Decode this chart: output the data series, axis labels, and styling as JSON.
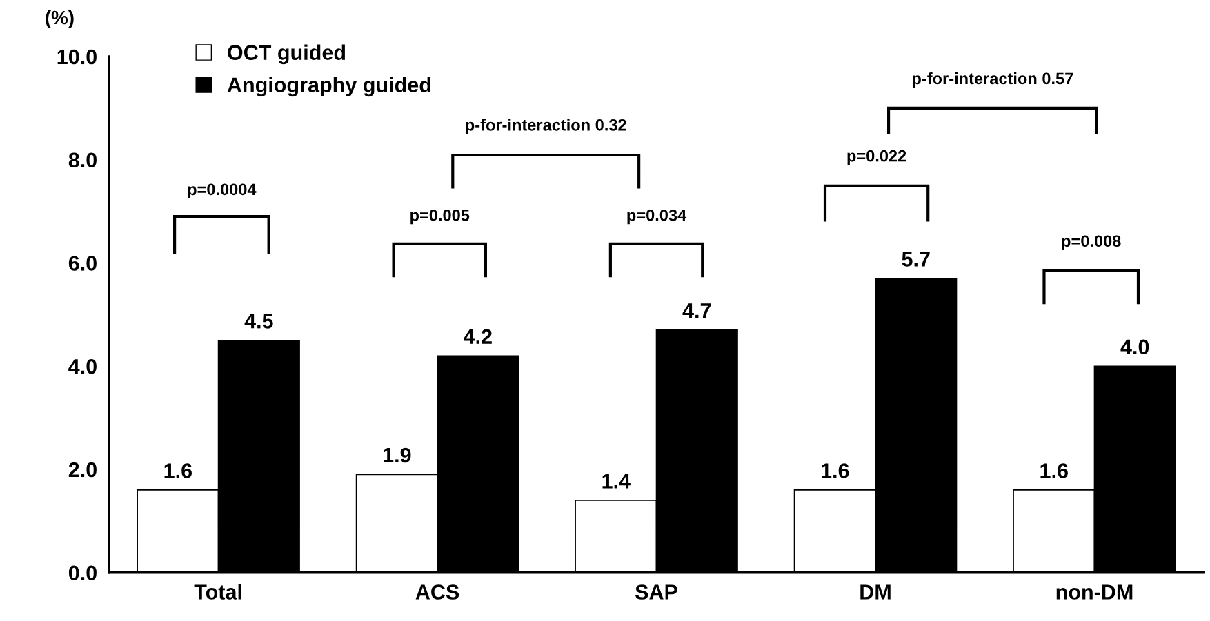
{
  "chart_data": {
    "type": "bar",
    "ylabel": "(%)",
    "categories": [
      "Total",
      "ACS",
      "SAP",
      "DM",
      "non-DM"
    ],
    "series": [
      {
        "name": "OCT guided",
        "color": "#ffffff",
        "values": [
          1.6,
          1.9,
          1.4,
          1.6,
          1.6
        ],
        "value_labels": [
          "1.6",
          "1.9",
          "1.4",
          "1.6",
          "1.6"
        ]
      },
      {
        "name": "Angiography guided",
        "color": "#000000",
        "values": [
          4.5,
          4.2,
          4.7,
          5.7,
          4.0
        ],
        "value_labels": [
          "4.5",
          "4.2",
          "4.7",
          "5.7",
          "4.0"
        ]
      }
    ],
    "ylim": [
      0,
      10
    ],
    "yticks": [
      {
        "value": 0,
        "label": "0.0"
      },
      {
        "value": 2,
        "label": "2.0"
      },
      {
        "value": 4,
        "label": "4.0"
      },
      {
        "value": 6,
        "label": "6.0"
      },
      {
        "value": 8,
        "label": "8.0"
      },
      {
        "value": 10,
        "label": "10.0"
      }
    ],
    "legend": "top left",
    "grid": false,
    "annotations": [
      "p=0.0004",
      "p=0.005",
      "p=0.034",
      "p=0.022",
      "p=0.008",
      "p-for-interaction 0.32",
      "p-for-interaction 0.57"
    ]
  }
}
